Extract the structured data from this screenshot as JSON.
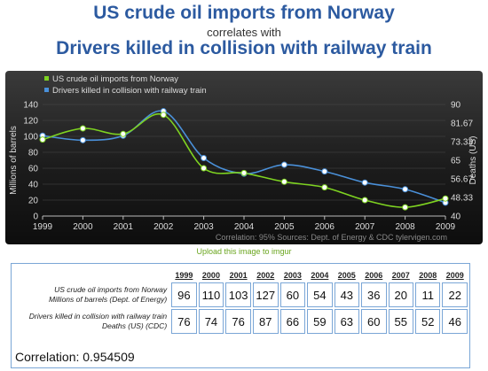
{
  "header": {
    "title1": "US crude oil imports from Norway",
    "connector": "correlates with",
    "title2": "Drivers killed in collision with railway train"
  },
  "chart_data": {
    "type": "line",
    "x": [
      1999,
      2000,
      2001,
      2002,
      2003,
      2004,
      2005,
      2006,
      2007,
      2008,
      2009
    ],
    "series": [
      {
        "name": "US crude oil imports from Norway",
        "axis": "left",
        "color": "#7ed321",
        "values": [
          96,
          110,
          103,
          127,
          60,
          54,
          43,
          36,
          20,
          11,
          22
        ]
      },
      {
        "name": "Drivers killed in collision with railway train",
        "axis": "right",
        "color": "#4a90d9",
        "values": [
          76,
          74,
          76,
          87,
          66,
          59,
          63,
          60,
          55,
          52,
          46
        ]
      }
    ],
    "ylabel_left": "Millions of barrels",
    "ylabel_right": "Deaths (US)",
    "ylim_left": [
      0,
      140
    ],
    "yticks_left": [
      0,
      20,
      40,
      60,
      80,
      100,
      120,
      140
    ],
    "ylim_right": [
      40,
      90
    ],
    "yticks_right": [
      "40",
      "48.33",
      "56.67",
      "65",
      "73.33",
      "81.67",
      "90"
    ],
    "xticks": [
      "1999",
      "2000",
      "2001",
      "2002",
      "2003",
      "2004",
      "2005",
      "2006",
      "2007",
      "2008",
      "2009"
    ],
    "legend_position": "top-left",
    "grid": true,
    "footer": "Correlation: 95%     Sources: Dept. of Energy & CDC     tylervigen.com"
  },
  "upload_link": "Upload this image to imgur",
  "table": {
    "years": [
      "1999",
      "2000",
      "2001",
      "2002",
      "2003",
      "2004",
      "2005",
      "2006",
      "2007",
      "2008",
      "2009"
    ],
    "rows": [
      {
        "label": "US crude oil imports from Norway",
        "sublabel": "Millions of barrels (Dept. of Energy)",
        "values": [
          "96",
          "110",
          "103",
          "127",
          "60",
          "54",
          "43",
          "36",
          "20",
          "11",
          "22"
        ]
      },
      {
        "label": "Drivers killed in collision with railway train",
        "sublabel": "Deaths (US) (CDC)",
        "values": [
          "76",
          "74",
          "76",
          "87",
          "66",
          "59",
          "63",
          "60",
          "55",
          "52",
          "46"
        ]
      }
    ],
    "correlation": "Correlation: 0.954509"
  }
}
